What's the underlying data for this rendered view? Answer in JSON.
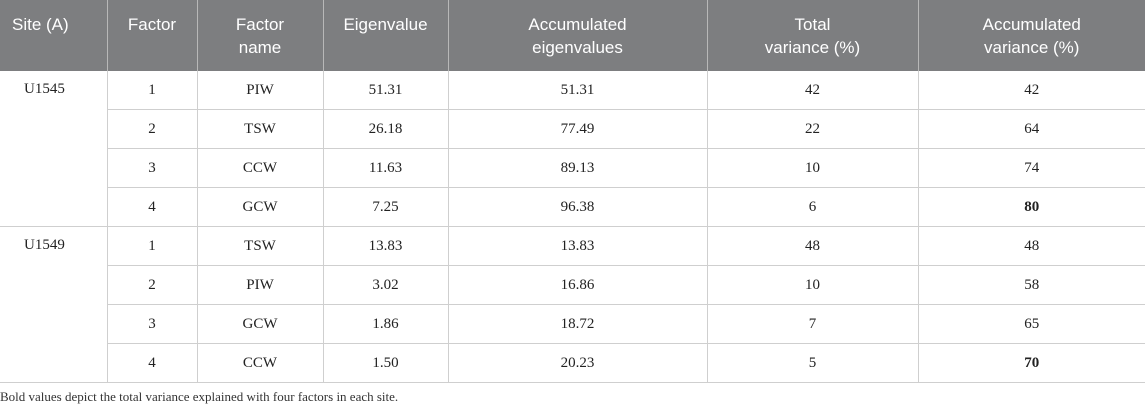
{
  "table": {
    "header": [
      "Site (A)",
      "Factor",
      "Factor name",
      "Eigenvalue",
      "Accumulated eigenvalues",
      "Total variance (%)",
      "Accumulated variance (%)"
    ],
    "groups": [
      {
        "site": "U1545",
        "rows": [
          [
            "1",
            "PIW",
            "51.31",
            "51.31",
            "42",
            "42"
          ],
          [
            "2",
            "TSW",
            "26.18",
            "77.49",
            "22",
            "64"
          ],
          [
            "3",
            "CCW",
            "11.63",
            "89.13",
            "10",
            "74"
          ],
          [
            "4",
            "GCW",
            "7.25",
            "96.38",
            "6",
            "80"
          ]
        ]
      },
      {
        "site": "U1549",
        "rows": [
          [
            "1",
            "TSW",
            "13.83",
            "13.83",
            "48",
            "48"
          ],
          [
            "2",
            "PIW",
            "3.02",
            "16.86",
            "10",
            "58"
          ],
          [
            "3",
            "GCW",
            "1.86",
            "18.72",
            "7",
            "65"
          ],
          [
            "4",
            "CCW",
            "1.50",
            "20.23",
            "5",
            "70"
          ]
        ]
      }
    ]
  },
  "footnote": "Bold values depict the total variance explained with four factors in each site."
}
